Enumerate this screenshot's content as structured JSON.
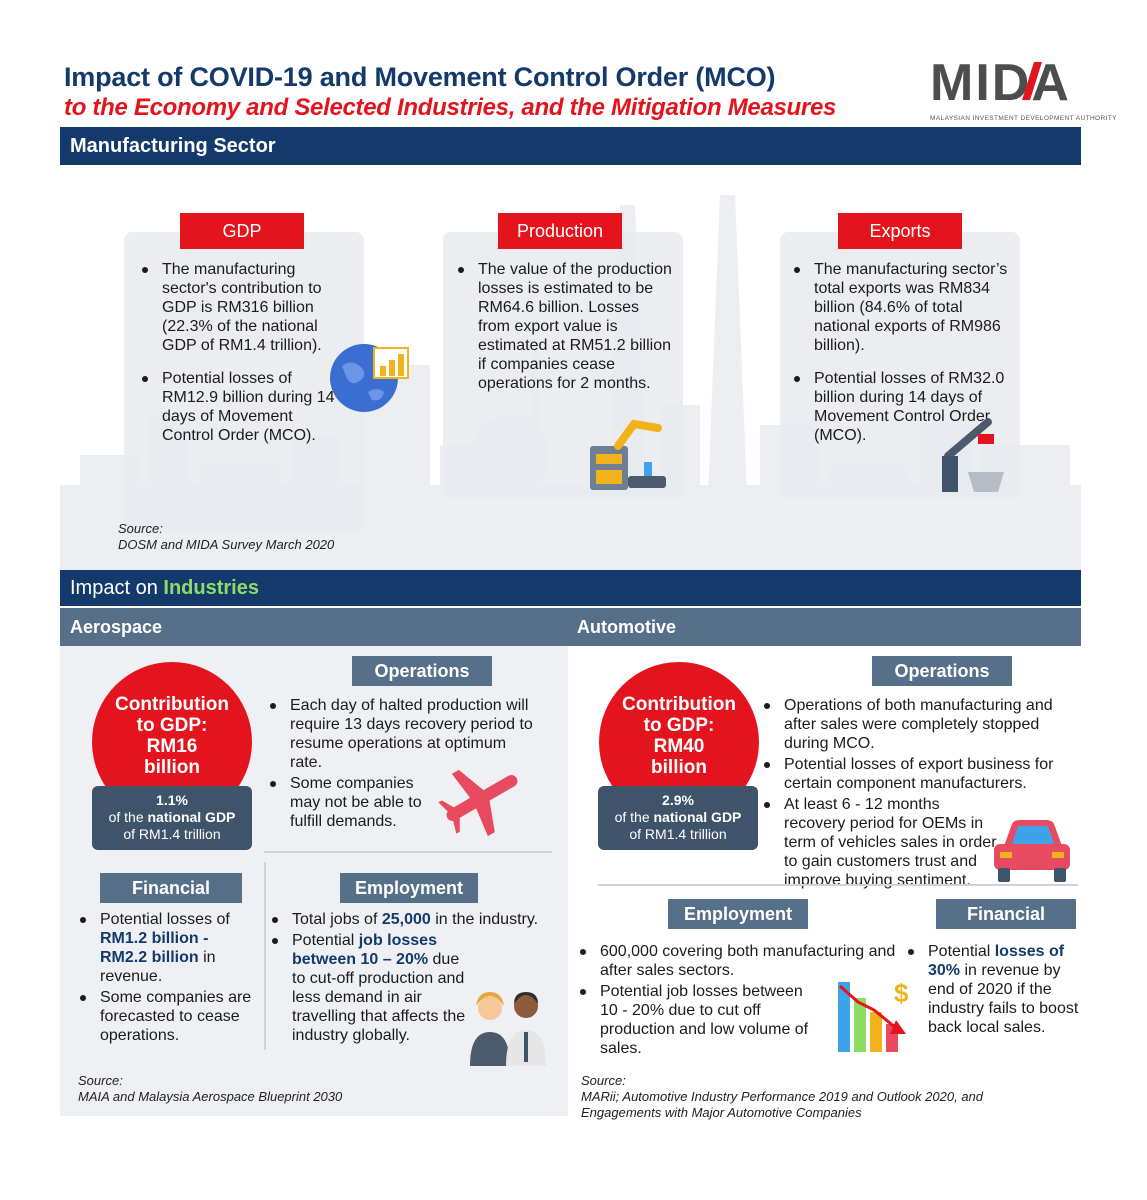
{
  "header": {
    "title_line1": "Impact of COVID-19 and Movement Control Order (MCO)",
    "title_line2": "to the Economy and Selected Industries, and the Mitigation Measures",
    "logo_text": "MIDA",
    "logo_subtitle": "MALAYSIAN INVESTMENT DEVELOPMENT AUTHORITY"
  },
  "manufacturing": {
    "section_title": "Manufacturing Sector",
    "gdp": {
      "label": "GDP",
      "bullets": [
        "The manufacturing sector's contribution to GDP is RM316 billion (22.3% of the national GDP of RM1.4 trillion).",
        "Potential losses of RM12.9 billion during 14 days of Movement Control Order (MCO)."
      ]
    },
    "production": {
      "label": "Production",
      "bullets": [
        "The value of the production losses is estimated to be RM64.6 billion. Losses from export value is estimated at RM51.2 billion if companies cease operations for 2 months."
      ]
    },
    "exports": {
      "label": "Exports",
      "bullets": [
        "The manufacturing sector’s total exports was RM834 billion (84.6% of total national exports of RM986 billion).",
        "Potential losses of RM32.0 billion during 14 days of Movement Control Order (MCO)."
      ]
    },
    "source_label": "Source:",
    "source_text": "DOSM and MIDA Survey March 2020"
  },
  "industries": {
    "title_prefix": "Impact on",
    "title_highlight": "Industries",
    "aerospace": {
      "title": "Aerospace",
      "gdp_circle": [
        "Contribution",
        "to GDP:",
        "RM16",
        "billion"
      ],
      "share_pct": "1.1%",
      "share_of": "of the",
      "share_bold": "national GDP",
      "share_line3": "of RM1.4 trillion",
      "operations": {
        "label": "Operations",
        "bullets": [
          "Each day of halted production will require 13 days recovery period to resume operations at optimum rate.",
          "Some companies may not be able to fulfill demands."
        ]
      },
      "financial": {
        "label": "Financial",
        "b1_pre": "Potential losses of",
        "b1_bold": "RM1.2 billion - RM2.2 billion",
        "b1_post": "in revenue.",
        "b2": "Some companies are forecasted to cease operations."
      },
      "employment": {
        "label": "Employment",
        "b1_pre": "Total jobs of",
        "b1_bold": "25,000",
        "b1_post": "in the industry.",
        "b2_pre": "Potential",
        "b2_bold": "job losses between 10 – 20%",
        "b2_post": "due to cut-off production and less demand in air travelling that affects the industry globally."
      },
      "source_label": "Source:",
      "source_text": "MAIA and Malaysia Aerospace Blueprint 2030"
    },
    "automotive": {
      "title": "Automotive",
      "gdp_circle": [
        "Contribution",
        "to GDP:",
        "RM40",
        "billion"
      ],
      "share_pct": "2.9%",
      "share_of": "of the",
      "share_bold": "national GDP",
      "share_line3": "of RM1.4 trillion",
      "operations": {
        "label": "Operations",
        "bullets": [
          "Operations of both manufacturing and after sales were completely stopped during MCO.",
          "Potential losses of export business for certain component manufacturers.",
          "At least 6 - 12 months recovery period for OEMs in term of vehicles sales in order to gain customers trust and improve buying sentiment."
        ]
      },
      "employment": {
        "label": "Employment",
        "bullets": [
          "600,000 covering both manufacturing and after sales sectors.",
          "Potential job losses between 10 - 20% due to cut off production and low volume of sales."
        ]
      },
      "financial": {
        "label": "Financial",
        "b1_pre": "Potential",
        "b1_bold": "losses of 30%",
        "b1_post": "in revenue by end of 2020 if the industry fails to boost back local sales."
      },
      "source_label": "Source:",
      "source_text": "MARii; Automotive Industry Performance 2019 and Outlook 2020, and Engagements with Major Automotive Companies"
    }
  },
  "colors": {
    "navy": "#143a6b",
    "red": "#e3141d",
    "slate": "#57708a",
    "green": "#8ddc67"
  },
  "icons": [
    "globe-chart-icon",
    "robot-arm-icon",
    "crane-ship-icon",
    "airplane-icon",
    "people-icon",
    "car-icon",
    "declining-chart-icon"
  ]
}
